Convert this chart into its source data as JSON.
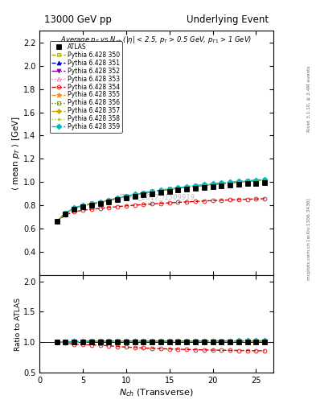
{
  "title_left": "13000 GeV pp",
  "title_right": "Underlying Event",
  "xlabel": "$N_{ch}$ (Transverse)",
  "ylabel_main": "$\\langle$ mean $p_T$ $\\rangle$ [GeV]",
  "ylabel_ratio": "Ratio to ATLAS",
  "annotation": "Average $p_T$ vs $N_{ch}$ ($|\\eta|$ < 2.5, $p_T$ > 0.5 GeV, $p_{T1}$ > 1 GeV)",
  "watermark": "ATLAS_2017_I1509919",
  "right_label1": "Rivet 3.1.10, ≥ 2.4M events",
  "right_label2": "mcplots.cern.ch [arXiv:1306.3436]",
  "ylim_main": [
    0.2,
    2.3
  ],
  "ylim_ratio": [
    0.5,
    2.1
  ],
  "xlim": [
    0,
    27
  ],
  "series": [
    {
      "label": "ATLAS",
      "color": "#000000",
      "marker": "s",
      "markersize": 4,
      "linestyle": "none",
      "fillstyle": "full",
      "zorder": 10,
      "x": [
        2,
        3,
        4,
        5,
        6,
        7,
        8,
        9,
        10,
        11,
        12,
        13,
        14,
        15,
        16,
        17,
        18,
        19,
        20,
        21,
        22,
        23,
        24,
        25,
        26
      ],
      "y": [
        0.66,
        0.728,
        0.768,
        0.789,
        0.8,
        0.812,
        0.828,
        0.847,
        0.863,
        0.877,
        0.89,
        0.901,
        0.913,
        0.922,
        0.931,
        0.94,
        0.948,
        0.956,
        0.963,
        0.969,
        0.975,
        0.981,
        0.986,
        0.991,
        0.996
      ]
    },
    {
      "label": "Pythia 6.428 350",
      "color": "#aaaa00",
      "marker": "s",
      "markersize": 3.5,
      "linestyle": "--",
      "fillstyle": "none",
      "zorder": 5,
      "x": [
        2,
        3,
        4,
        5,
        6,
        7,
        8,
        9,
        10,
        11,
        12,
        13,
        14,
        15,
        16,
        17,
        18,
        19,
        20,
        21,
        22,
        23,
        24,
        25,
        26
      ],
      "y": [
        0.662,
        0.732,
        0.776,
        0.798,
        0.812,
        0.825,
        0.842,
        0.86,
        0.876,
        0.891,
        0.904,
        0.916,
        0.928,
        0.938,
        0.948,
        0.957,
        0.965,
        0.973,
        0.981,
        0.988,
        0.994,
        1.001,
        1.007,
        1.012,
        1.017
      ]
    },
    {
      "label": "Pythia 6.428 351",
      "color": "#0000cc",
      "marker": "^",
      "markersize": 3.5,
      "linestyle": "--",
      "fillstyle": "full",
      "zorder": 5,
      "x": [
        2,
        3,
        4,
        5,
        6,
        7,
        8,
        9,
        10,
        11,
        12,
        13,
        14,
        15,
        16,
        17,
        18,
        19,
        20,
        21,
        22,
        23,
        24,
        25,
        26
      ],
      "y": [
        0.662,
        0.732,
        0.776,
        0.798,
        0.812,
        0.825,
        0.842,
        0.86,
        0.876,
        0.891,
        0.904,
        0.916,
        0.928,
        0.938,
        0.948,
        0.957,
        0.965,
        0.973,
        0.981,
        0.988,
        0.994,
        1.001,
        1.007,
        1.012,
        1.017
      ]
    },
    {
      "label": "Pythia 6.428 352",
      "color": "#8800aa",
      "marker": "v",
      "markersize": 3.5,
      "linestyle": "-.",
      "fillstyle": "full",
      "zorder": 5,
      "x": [
        2,
        3,
        4,
        5,
        6,
        7,
        8,
        9,
        10,
        11,
        12,
        13,
        14,
        15,
        16,
        17,
        18,
        19,
        20,
        21,
        22,
        23,
        24,
        25,
        26
      ],
      "y": [
        0.662,
        0.732,
        0.776,
        0.798,
        0.812,
        0.825,
        0.842,
        0.86,
        0.876,
        0.891,
        0.904,
        0.916,
        0.928,
        0.938,
        0.948,
        0.957,
        0.965,
        0.973,
        0.981,
        0.988,
        0.994,
        1.001,
        1.007,
        1.012,
        1.017
      ]
    },
    {
      "label": "Pythia 6.428 353",
      "color": "#ff66aa",
      "marker": "^",
      "markersize": 3.5,
      "linestyle": ":",
      "fillstyle": "none",
      "zorder": 5,
      "x": [
        2,
        3,
        4,
        5,
        6,
        7,
        8,
        9,
        10,
        11,
        12,
        13,
        14,
        15,
        16,
        17,
        18,
        19,
        20,
        21,
        22,
        23,
        24,
        25,
        26
      ],
      "y": [
        0.662,
        0.732,
        0.776,
        0.798,
        0.812,
        0.825,
        0.842,
        0.86,
        0.876,
        0.891,
        0.904,
        0.916,
        0.928,
        0.938,
        0.948,
        0.957,
        0.965,
        0.973,
        0.981,
        0.988,
        0.994,
        1.001,
        1.007,
        1.012,
        1.017
      ]
    },
    {
      "label": "Pythia 6.428 354",
      "color": "#dd0000",
      "marker": "o",
      "markersize": 3.5,
      "linestyle": "--",
      "fillstyle": "none",
      "zorder": 5,
      "x": [
        2,
        3,
        4,
        5,
        6,
        7,
        8,
        9,
        10,
        11,
        12,
        13,
        14,
        15,
        16,
        17,
        18,
        19,
        20,
        21,
        22,
        23,
        24,
        25,
        26
      ],
      "y": [
        0.66,
        0.718,
        0.745,
        0.758,
        0.766,
        0.774,
        0.782,
        0.789,
        0.796,
        0.802,
        0.807,
        0.812,
        0.817,
        0.822,
        0.826,
        0.83,
        0.834,
        0.838,
        0.841,
        0.844,
        0.847,
        0.85,
        0.853,
        0.855,
        0.858
      ]
    },
    {
      "label": "Pythia 6.428 355",
      "color": "#ff8800",
      "marker": "*",
      "markersize": 4.5,
      "linestyle": "--",
      "fillstyle": "full",
      "zorder": 5,
      "x": [
        2,
        3,
        4,
        5,
        6,
        7,
        8,
        9,
        10,
        11,
        12,
        13,
        14,
        15,
        16,
        17,
        18,
        19,
        20,
        21,
        22,
        23,
        24,
        25,
        26
      ],
      "y": [
        0.662,
        0.732,
        0.776,
        0.798,
        0.812,
        0.825,
        0.842,
        0.86,
        0.876,
        0.891,
        0.904,
        0.916,
        0.928,
        0.938,
        0.948,
        0.957,
        0.965,
        0.973,
        0.981,
        0.988,
        0.994,
        1.001,
        1.007,
        1.012,
        1.017
      ]
    },
    {
      "label": "Pythia 6.428 356",
      "color": "#668800",
      "marker": "s",
      "markersize": 3.5,
      "linestyle": ":",
      "fillstyle": "none",
      "zorder": 5,
      "x": [
        2,
        3,
        4,
        5,
        6,
        7,
        8,
        9,
        10,
        11,
        12,
        13,
        14,
        15,
        16,
        17,
        18,
        19,
        20,
        21,
        22,
        23,
        24,
        25,
        26
      ],
      "y": [
        0.662,
        0.732,
        0.776,
        0.798,
        0.812,
        0.825,
        0.842,
        0.86,
        0.876,
        0.891,
        0.904,
        0.916,
        0.928,
        0.938,
        0.948,
        0.957,
        0.965,
        0.973,
        0.981,
        0.988,
        0.994,
        1.001,
        1.007,
        1.012,
        1.017
      ]
    },
    {
      "label": "Pythia 6.428 357",
      "color": "#ccaa00",
      "marker": "D",
      "markersize": 3.0,
      "linestyle": "-.",
      "fillstyle": "full",
      "zorder": 5,
      "x": [
        2,
        3,
        4,
        5,
        6,
        7,
        8,
        9,
        10,
        11,
        12,
        13,
        14,
        15,
        16,
        17,
        18,
        19,
        20,
        21,
        22,
        23,
        24,
        25,
        26
      ],
      "y": [
        0.662,
        0.732,
        0.776,
        0.798,
        0.812,
        0.825,
        0.842,
        0.86,
        0.876,
        0.891,
        0.904,
        0.916,
        0.928,
        0.938,
        0.948,
        0.957,
        0.965,
        0.973,
        0.981,
        0.988,
        0.994,
        1.001,
        1.007,
        1.012,
        1.017
      ]
    },
    {
      "label": "Pythia 6.428 358",
      "color": "#aadd00",
      "marker": ".",
      "markersize": 4,
      "linestyle": ":",
      "fillstyle": "full",
      "zorder": 5,
      "x": [
        2,
        3,
        4,
        5,
        6,
        7,
        8,
        9,
        10,
        11,
        12,
        13,
        14,
        15,
        16,
        17,
        18,
        19,
        20,
        21,
        22,
        23,
        24,
        25,
        26
      ],
      "y": [
        0.662,
        0.732,
        0.776,
        0.798,
        0.812,
        0.825,
        0.842,
        0.86,
        0.876,
        0.891,
        0.904,
        0.916,
        0.928,
        0.938,
        0.948,
        0.957,
        0.965,
        0.973,
        0.981,
        0.988,
        0.994,
        1.001,
        1.007,
        1.012,
        1.017
      ]
    },
    {
      "label": "Pythia 6.428 359",
      "color": "#00bbbb",
      "marker": "D",
      "markersize": 3.5,
      "linestyle": "--",
      "fillstyle": "full",
      "zorder": 5,
      "x": [
        2,
        3,
        4,
        5,
        6,
        7,
        8,
        9,
        10,
        11,
        12,
        13,
        14,
        15,
        16,
        17,
        18,
        19,
        20,
        21,
        22,
        23,
        24,
        25,
        26
      ],
      "y": [
        0.664,
        0.735,
        0.779,
        0.801,
        0.815,
        0.829,
        0.846,
        0.864,
        0.88,
        0.895,
        0.908,
        0.92,
        0.932,
        0.942,
        0.952,
        0.961,
        0.97,
        0.978,
        0.986,
        0.993,
        0.999,
        1.006,
        1.012,
        1.018,
        1.023
      ]
    }
  ]
}
